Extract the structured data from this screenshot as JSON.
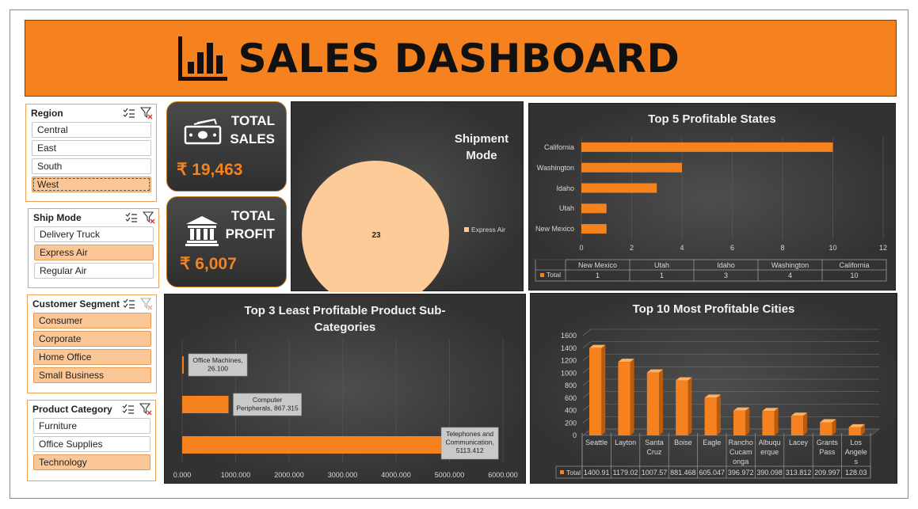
{
  "header": {
    "title": "SALES DASHBOARD",
    "icon": "bar-chart-icon"
  },
  "slicers": [
    {
      "title": "Region",
      "items": [
        {
          "label": "Central",
          "selected": false
        },
        {
          "label": "East",
          "selected": false
        },
        {
          "label": "South",
          "selected": false
        },
        {
          "label": "West",
          "selected": true
        }
      ]
    },
    {
      "title": "Ship Mode",
      "items": [
        {
          "label": "Delivery Truck",
          "selected": false
        },
        {
          "label": "Express Air",
          "selected": true
        },
        {
          "label": "Regular Air",
          "selected": false
        }
      ]
    },
    {
      "title": "Customer Segment",
      "items": [
        {
          "label": "Consumer",
          "selected": true
        },
        {
          "label": "Corporate",
          "selected": true
        },
        {
          "label": "Home Office",
          "selected": true
        },
        {
          "label": "Small Business",
          "selected": true
        }
      ]
    },
    {
      "title": "Product Category",
      "items": [
        {
          "label": "Furniture",
          "selected": false
        },
        {
          "label": "Office Supplies",
          "selected": false
        },
        {
          "label": "Technology",
          "selected": true
        }
      ]
    }
  ],
  "kpis": {
    "sales": {
      "line1": "TOTAL",
      "line2": "SALES",
      "value": "₹ 19,463",
      "icon": "cash-icon"
    },
    "profit": {
      "line1": "TOTAL",
      "line2": "PROFIT",
      "value": "₹ 6,007",
      "icon": "bank-icon"
    }
  },
  "chart_data": [
    {
      "type": "pie",
      "title": "Shipment Mode",
      "categories": [
        "Express Air"
      ],
      "values": [
        23
      ],
      "data_labels": [
        "23"
      ],
      "colors": [
        "#fccb98"
      ],
      "legend": "right"
    },
    {
      "type": "bar",
      "title": "Top 5 Profitable States",
      "categories": [
        "New Mexico",
        "Utah",
        "Idaho",
        "Washington",
        "California"
      ],
      "series": [
        {
          "name": "Total",
          "values": [
            1,
            1,
            3,
            4,
            10
          ]
        }
      ],
      "xlim": [
        0,
        12
      ],
      "xticks": [
        "0",
        "2",
        "4",
        "6",
        "8",
        "10",
        "12"
      ],
      "table": {
        "legend": "Total",
        "values": [
          "1",
          "1",
          "3",
          "4",
          "10"
        ]
      },
      "color": "#f5821f"
    },
    {
      "type": "bar",
      "title": "Top 3 Least Profitable Product Sub-Categories",
      "categories": [
        "Office Machines",
        "Computer Peripherals",
        "Telephones and Communication"
      ],
      "values": [
        26.1,
        867.315,
        5113.412
      ],
      "data_labels": [
        "Office Machines, 26.100",
        "Computer Peripherals, 867.315",
        "Telephones and Communication, 5113.412"
      ],
      "xlim": [
        0,
        6000
      ],
      "xticks": [
        "0.000",
        "1000.000",
        "2000.000",
        "3000.000",
        "4000.000",
        "5000.000",
        "6000.000"
      ],
      "color": "#f5821f"
    },
    {
      "type": "bar",
      "title": "Top 10 Most Profitable Cities",
      "categories": [
        "Seattle",
        "Layton",
        "Santa Cruz",
        "Boise",
        "Eagle",
        "Rancho Cucamonga",
        "Albuquerque",
        "Lacey",
        "Grants Pass",
        "Los Angeles"
      ],
      "category_labels": [
        [
          "Seattle"
        ],
        [
          "Layton"
        ],
        [
          "Santa",
          "Cruz"
        ],
        [
          "Boise"
        ],
        [
          "Eagle"
        ],
        [
          "Rancho",
          "Cucam",
          "onga"
        ],
        [
          "Albuqu",
          "erque"
        ],
        [
          "Lacey"
        ],
        [
          "Grants",
          "Pass"
        ],
        [
          "Los",
          "Angele",
          "s"
        ]
      ],
      "series": [
        {
          "name": "Total",
          "values": [
            1400.91,
            1179.02,
            1007.57,
            881.468,
            605.047,
            396.972,
            390.098,
            313.812,
            209.997,
            128.03
          ]
        }
      ],
      "table": {
        "legend": "Total",
        "values": [
          "1400.91",
          "1179.02",
          "1007.57",
          "881.468",
          "605.047",
          "396.972",
          "390.098",
          "313.812",
          "209.997",
          "128.03"
        ]
      },
      "ylim": [
        0,
        1600
      ],
      "yticks": [
        "0",
        "200",
        "400",
        "600",
        "800",
        "1000",
        "1200",
        "1400",
        "1600"
      ],
      "color": "#f5821f"
    }
  ]
}
